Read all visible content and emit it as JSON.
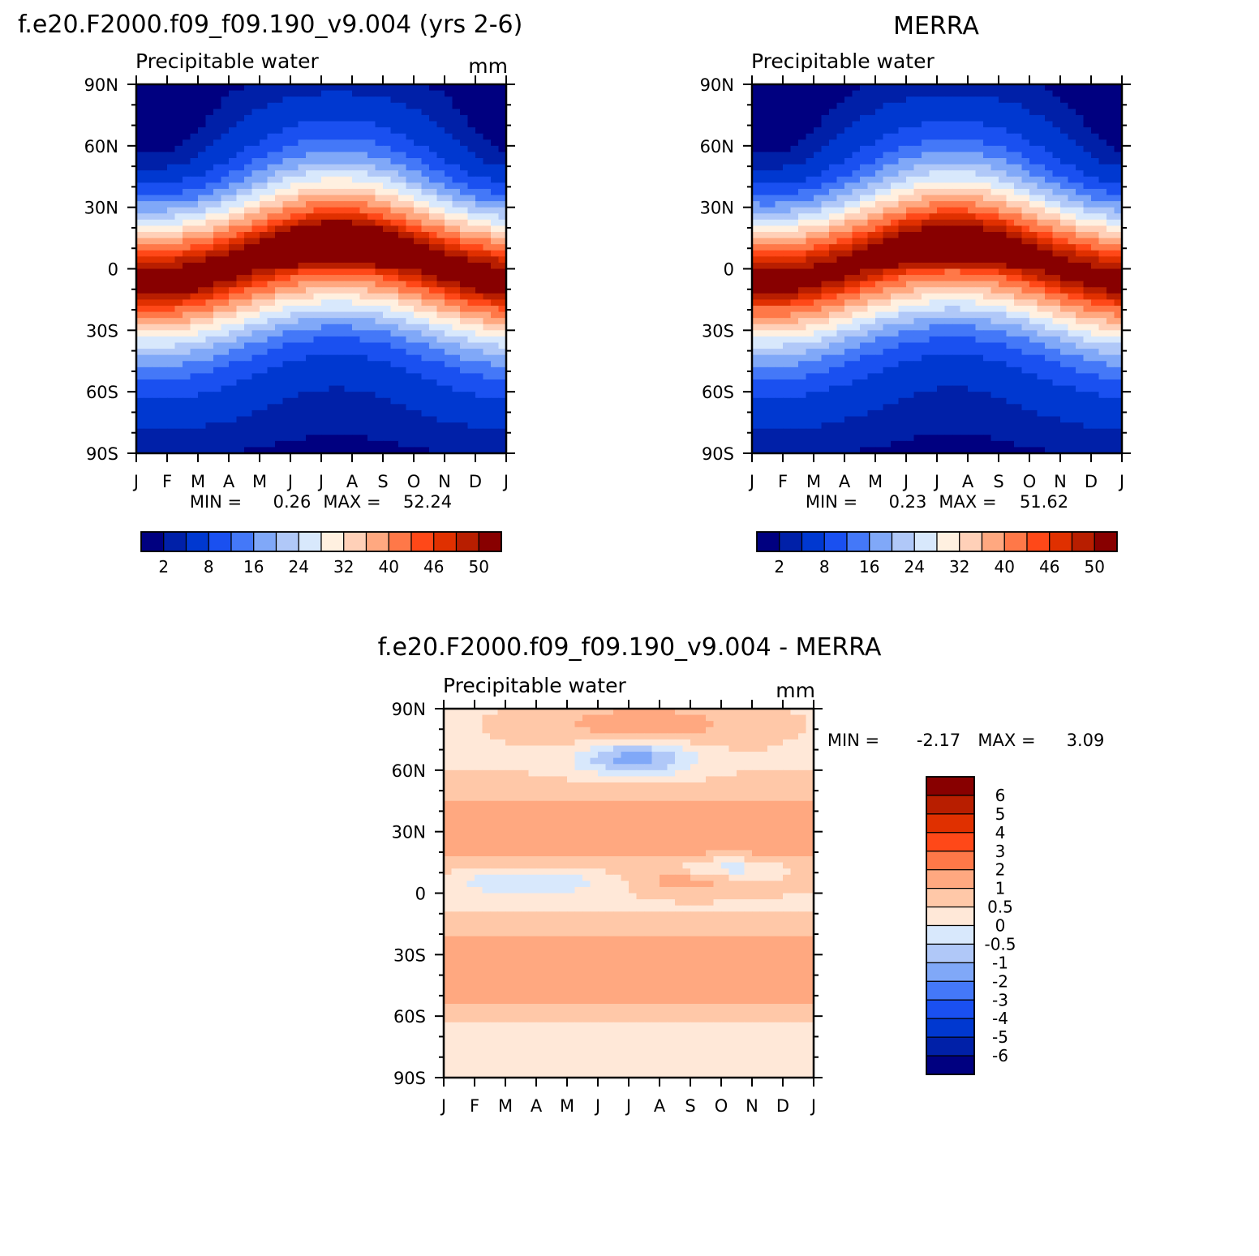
{
  "month_labels": [
    "J",
    "F",
    "M",
    "A",
    "M",
    "J",
    "J",
    "A",
    "S",
    "O",
    "N",
    "D",
    "J"
  ],
  "lat_labels": [
    "90N",
    "60N",
    "30N",
    "0",
    "30S",
    "60S",
    "90S"
  ],
  "palettes": {
    "abs": [
      "#000080",
      "#0020a8",
      "#0038d0",
      "#1a50f0",
      "#4478f8",
      "#80a8f8",
      "#b0c8f8",
      "#d8e8fc",
      "#fff0e0",
      "#ffd0b8",
      "#ffa880",
      "#ff7848",
      "#ff4818",
      "#e03000",
      "#b81e00",
      "#880000"
    ],
    "diff": [
      "#000080",
      "#0020a8",
      "#0038d0",
      "#1a50f0",
      "#4478f8",
      "#80a8f8",
      "#b0c8f8",
      "#d8e8fc",
      "#ffe8d8",
      "#ffc8a8",
      "#ffa880",
      "#ff7848",
      "#ff4818",
      "#e03000",
      "#b81e00",
      "#880000"
    ]
  },
  "chart_data": [
    {
      "type": "heatmap",
      "id": "model",
      "title": "f.e20.F2000.f09_f09.190_v9.004 (yrs 2-6)",
      "subtitle": "Precipitable water",
      "units": "mm",
      "stats": {
        "min_label": "MIN =",
        "min": "0.26",
        "max_label": "MAX =",
        "max": "52.24"
      },
      "colorbar_labels": [
        "2",
        "8",
        "16",
        "24",
        "32",
        "40",
        "46",
        "50"
      ],
      "levels": [
        2,
        4,
        8,
        12,
        16,
        20,
        24,
        28,
        32,
        36,
        40,
        44,
        46,
        48,
        50
      ],
      "field": {
        "kind": "abs",
        "amp": 1.0,
        "north_peak": 7,
        "summer_bias": 0
      }
    },
    {
      "type": "heatmap",
      "id": "obs",
      "title": "MERRA",
      "subtitle": "Precipitable water",
      "units": "",
      "stats": {
        "min_label": "MIN =",
        "min": "0.23",
        "max_label": "MAX =",
        "max": "51.62"
      },
      "colorbar_labels": [
        "2",
        "8",
        "16",
        "24",
        "32",
        "40",
        "46",
        "50"
      ],
      "levels": [
        2,
        4,
        8,
        12,
        16,
        20,
        24,
        28,
        32,
        36,
        40,
        44,
        46,
        48,
        50
      ],
      "field": {
        "kind": "abs",
        "amp": 0.985,
        "north_peak": 7,
        "summer_bias": 0
      }
    },
    {
      "type": "heatmap",
      "id": "diff",
      "title": "f.e20.F2000.f09_f09.190_v9.004 - MERRA",
      "subtitle": "Precipitable water",
      "units": "mm",
      "stats": {
        "min_label": "MIN =",
        "min": "-2.17",
        "max_label": "MAX =",
        "max": "3.09"
      },
      "colorbar_labels": [
        "6",
        "5",
        "4",
        "3",
        "2",
        "1",
        "0.5",
        "0",
        "-0.5",
        "-1",
        "-2",
        "-3",
        "-4",
        "-5",
        "-6"
      ],
      "levels": [
        -6,
        -5,
        -4,
        -3,
        -2,
        -1,
        -0.5,
        0,
        0.5,
        1,
        2,
        3,
        4,
        5,
        6
      ],
      "field": {
        "kind": "diff"
      }
    }
  ]
}
